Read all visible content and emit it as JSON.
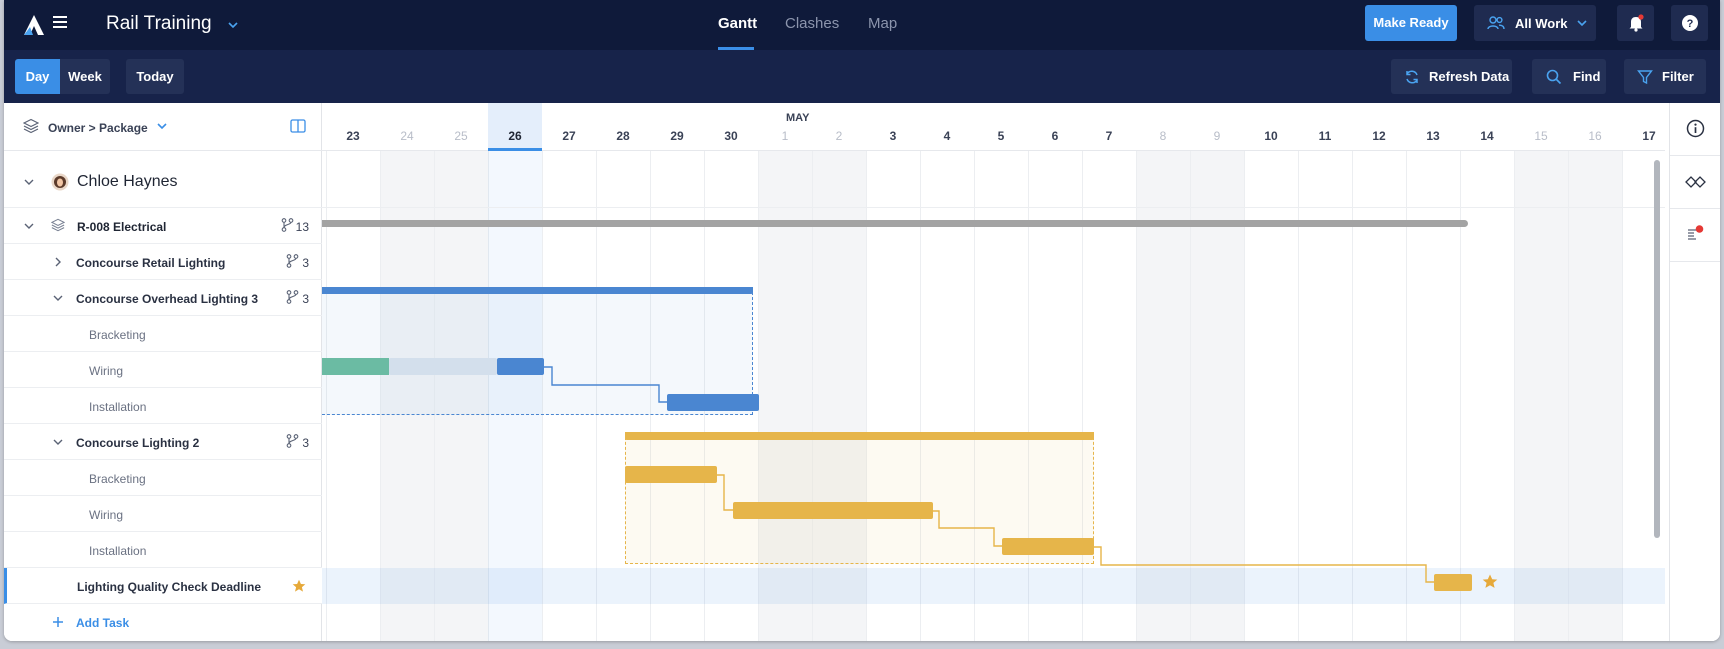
{
  "header": {
    "project_title": "Rail Training",
    "tabs": [
      {
        "label": "Gantt",
        "active": true
      },
      {
        "label": "Clashes",
        "active": false
      },
      {
        "label": "Map",
        "active": false
      }
    ],
    "make_ready_label": "Make Ready",
    "all_work_label": "All Work"
  },
  "toolbar": {
    "day_label": "Day",
    "week_label": "Week",
    "today_label": "Today",
    "refresh_label": "Refresh Data",
    "find_label": "Find",
    "filter_label": "Filter"
  },
  "left_panel": {
    "grouping_label": "Owner > Package",
    "owner": "Chloe Haynes",
    "package": {
      "name": "R-008 Electrical",
      "count": "13"
    },
    "rows": [
      {
        "name": "Concourse Retail Lighting",
        "count": "3",
        "expanded": false
      },
      {
        "name": "Concourse Overhead Lighting 3",
        "count": "3",
        "expanded": true
      },
      {
        "name": "Bracketing"
      },
      {
        "name": "Wiring"
      },
      {
        "name": "Installation"
      },
      {
        "name": "Concourse Lighting 2",
        "count": "3",
        "expanded": true
      },
      {
        "name": "Bracketing"
      },
      {
        "name": "Wiring"
      },
      {
        "name": "Installation"
      }
    ],
    "milestone": "Lighting Quality Check Deadline",
    "add_task_label": "Add Task"
  },
  "timeline": {
    "month_label": "MAY",
    "days": [
      {
        "label": "23",
        "weekend": false
      },
      {
        "label": "24",
        "weekend": true
      },
      {
        "label": "25",
        "weekend": true
      },
      {
        "label": "26",
        "weekend": false,
        "today": true
      },
      {
        "label": "27",
        "weekend": false
      },
      {
        "label": "28",
        "weekend": false
      },
      {
        "label": "29",
        "weekend": false
      },
      {
        "label": "30",
        "weekend": false
      },
      {
        "label": "1",
        "weekend": true
      },
      {
        "label": "2",
        "weekend": true
      },
      {
        "label": "3",
        "weekend": false
      },
      {
        "label": "4",
        "weekend": false
      },
      {
        "label": "5",
        "weekend": false
      },
      {
        "label": "6",
        "weekend": false
      },
      {
        "label": "7",
        "weekend": false
      },
      {
        "label": "8",
        "weekend": true
      },
      {
        "label": "9",
        "weekend": true
      },
      {
        "label": "10",
        "weekend": false
      },
      {
        "label": "11",
        "weekend": false
      },
      {
        "label": "12",
        "weekend": false
      },
      {
        "label": "13",
        "weekend": false
      },
      {
        "label": "14",
        "weekend": false
      },
      {
        "label": "15",
        "weekend": true
      },
      {
        "label": "16",
        "weekend": true
      },
      {
        "label": "17",
        "weekend": false
      }
    ]
  },
  "colors": {
    "navy": "#0f1a3a",
    "accent_blue": "#3a8ee6",
    "task_blue": "#4a86d1",
    "task_teal": "#6bbba3",
    "task_gold": "#e6b54a",
    "package_gray": "#a3a3a3"
  }
}
